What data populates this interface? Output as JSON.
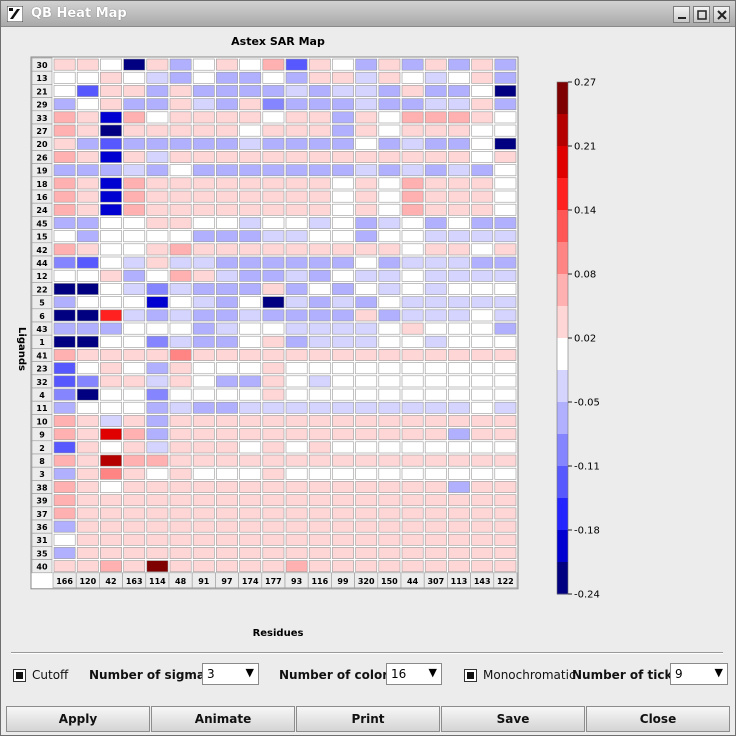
{
  "window": {
    "title": "QB Heat Map"
  },
  "chart_data": {
    "type": "heatmap",
    "title": "Astex SAR Map",
    "xlabel": "Residues",
    "ylabel": "Ligands",
    "columns": [
      "166",
      "120",
      "42",
      "163",
      "114",
      "48",
      "91",
      "97",
      "174",
      "177",
      "93",
      "116",
      "99",
      "320",
      "150",
      "44",
      "307",
      "113",
      "143",
      "122"
    ],
    "rows": [
      "30",
      "13",
      "21",
      "29",
      "33",
      "27",
      "20",
      "26",
      "19",
      "18",
      "16",
      "24",
      "45",
      "15",
      "42",
      "44",
      "12",
      "22",
      "5",
      "6",
      "43",
      "1",
      "41",
      "23",
      "32",
      "4",
      "11",
      "10",
      "9",
      "2",
      "8",
      "3",
      "38",
      "39",
      "37",
      "36",
      "31",
      "35",
      "40"
    ],
    "values": [
      [
        0.03,
        0.03,
        0,
        -0.21,
        0.02,
        -0.05,
        0,
        0.02,
        0,
        0.06,
        -0.14,
        0.03,
        0,
        -0.05,
        0.02,
        -0.05,
        0.02,
        -0.05,
        0.02,
        -0.05
      ],
      [
        0,
        0,
        0.02,
        0,
        -0.02,
        -0.05,
        0,
        -0.05,
        -0.05,
        0,
        -0.05,
        0.02,
        0.02,
        -0.02,
        0.02,
        0,
        -0.02,
        0,
        0.02,
        -0.08
      ],
      [
        0,
        -0.14,
        0.02,
        0.02,
        -0.05,
        0.04,
        -0.05,
        -0.05,
        -0.05,
        -0.05,
        -0.02,
        -0.05,
        -0.02,
        -0.02,
        -0.08,
        0.02,
        -0.05,
        -0.05,
        0,
        -0.21
      ],
      [
        -0.05,
        0,
        0.02,
        -0.05,
        -0.08,
        0.02,
        -0.02,
        -0.05,
        0.02,
        -0.11,
        -0.05,
        -0.05,
        -0.05,
        -0.02,
        -0.05,
        -0.05,
        -0.02,
        -0.02,
        0.02,
        -0.05
      ],
      [
        0.05,
        0.04,
        -0.18,
        0.05,
        0,
        0.04,
        0.03,
        0.04,
        0.03,
        0,
        0.04,
        0.02,
        -0.05,
        0.02,
        0,
        0.06,
        0.06,
        0.06,
        0.03,
        0
      ],
      [
        0.06,
        0.04,
        -0.21,
        0.04,
        0.02,
        0.02,
        0.02,
        0.02,
        0,
        0.02,
        0.02,
        0.02,
        -0.05,
        0.02,
        0,
        0.02,
        0.02,
        0.02,
        0,
        0
      ],
      [
        0.03,
        -0.05,
        -0.14,
        -0.05,
        -0.08,
        -0.05,
        -0.05,
        -0.05,
        -0.02,
        -0.08,
        -0.05,
        -0.05,
        -0.05,
        0,
        -0.05,
        -0.02,
        -0.05,
        -0.05,
        0,
        -0.21
      ],
      [
        0.06,
        0.04,
        -0.18,
        0.04,
        -0.02,
        0.04,
        0.03,
        0.03,
        0.02,
        0.03,
        0.03,
        0.02,
        0.02,
        0.02,
        0.02,
        0.04,
        0.04,
        0.04,
        0,
        0.02
      ],
      [
        -0.05,
        -0.05,
        -0.05,
        -0.02,
        -0.05,
        0,
        -0.05,
        -0.05,
        -0.05,
        -0.05,
        -0.05,
        -0.05,
        -0.05,
        -0.02,
        -0.08,
        -0.02,
        -0.05,
        -0.02,
        -0.05,
        0
      ],
      [
        0.06,
        0.04,
        -0.18,
        0.05,
        0.04,
        0.03,
        0.04,
        0.03,
        0.04,
        0.02,
        0.03,
        0.03,
        0,
        0.02,
        0,
        0.05,
        0.04,
        0.03,
        0.02,
        0
      ],
      [
        0.06,
        0.04,
        -0.18,
        0.05,
        0.04,
        0.03,
        0.04,
        0.03,
        0.04,
        0.02,
        0.03,
        0.03,
        0,
        0.02,
        0,
        0.05,
        0.04,
        0.03,
        0.02,
        0
      ],
      [
        0.06,
        0.04,
        -0.18,
        0.05,
        0.04,
        0.03,
        0.04,
        0.03,
        0.04,
        0.02,
        0.03,
        0.03,
        0,
        0.02,
        0,
        0.05,
        0.04,
        0.03,
        0.02,
        0
      ],
      [
        -0.08,
        -0.05,
        0,
        0,
        0.04,
        0.02,
        0,
        0,
        -0.02,
        0,
        0,
        -0.02,
        0,
        -0.05,
        -0.02,
        0,
        -0.05,
        0,
        -0.05,
        -0.05
      ],
      [
        0,
        -0.08,
        0,
        0,
        0,
        0,
        -0.05,
        -0.05,
        -0.05,
        -0.02,
        -0.02,
        0,
        0,
        -0.05,
        0,
        0,
        -0.02,
        -0.02,
        -0.02,
        -0.02
      ],
      [
        0.05,
        0.04,
        0,
        0,
        0.02,
        0.06,
        0.03,
        0.03,
        0.03,
        0.02,
        0.04,
        0.04,
        0.04,
        0.02,
        0.03,
        0,
        0.02,
        0.02,
        0,
        0.02
      ],
      [
        -0.11,
        -0.14,
        0,
        -0.02,
        0.03,
        -0.02,
        -0.02,
        -0.05,
        -0.05,
        -0.05,
        -0.05,
        -0.05,
        -0.05,
        0,
        -0.05,
        -0.02,
        -0.02,
        -0.02,
        -0.05,
        -0.08
      ],
      [
        0,
        0,
        0.02,
        -0.05,
        0,
        0.05,
        0.02,
        -0.02,
        -0.05,
        -0.08,
        -0.02,
        -0.05,
        0,
        -0.02,
        -0.02,
        0,
        -0.02,
        -0.02,
        -0.02,
        -0.02
      ],
      [
        -0.24,
        -0.24,
        0,
        -0.02,
        -0.11,
        -0.02,
        -0.08,
        -0.05,
        -0.05,
        0.02,
        -0.05,
        0,
        -0.08,
        0,
        -0.02,
        0,
        -0.02,
        0,
        0,
        0
      ],
      [
        -0.08,
        0,
        0,
        0,
        -0.18,
        0,
        -0.02,
        -0.08,
        0,
        -0.24,
        -0.02,
        -0.08,
        -0.02,
        -0.05,
        0,
        -0.02,
        -0.02,
        -0.02,
        -0.02,
        -0.02
      ],
      [
        -0.24,
        -0.21,
        0.15,
        -0.02,
        -0.05,
        -0.02,
        -0.08,
        -0.05,
        -0.02,
        -0.05,
        -0.08,
        -0.08,
        -0.08,
        0.03,
        -0.05,
        -0.02,
        -0.02,
        -0.02,
        0,
        -0.02
      ],
      [
        -0.05,
        -0.05,
        -0.05,
        0,
        0,
        0,
        -0.05,
        -0.02,
        0,
        0,
        -0.02,
        -0.02,
        -0.02,
        -0.02,
        0,
        0.02,
        0,
        0,
        0,
        -0.08
      ],
      [
        -0.24,
        -0.24,
        0,
        0,
        -0.11,
        -0.02,
        -0.05,
        -0.05,
        0,
        0.02,
        -0.05,
        -0.02,
        -0.02,
        -0.02,
        0,
        0,
        -0.02,
        0,
        0,
        0
      ],
      [
        0.06,
        0.03,
        0.03,
        0.03,
        0.03,
        0.08,
        0.03,
        0.03,
        0.02,
        0.03,
        0.03,
        0.02,
        0.02,
        0.02,
        0.04,
        0.02,
        0.02,
        0.02,
        0.02,
        0.02
      ],
      [
        -0.14,
        0,
        0.02,
        0,
        -0.05,
        0.02,
        0,
        0,
        0,
        0.02,
        0,
        0,
        0,
        0,
        0,
        0,
        0,
        0,
        0,
        0
      ],
      [
        -0.14,
        -0.11,
        0.02,
        0.02,
        -0.02,
        0.02,
        0,
        -0.05,
        -0.05,
        0.02,
        0,
        -0.02,
        0,
        0,
        0,
        0,
        0,
        0,
        0,
        0
      ],
      [
        -0.11,
        -0.24,
        0,
        0,
        -0.11,
        0,
        0,
        0,
        0,
        0.03,
        0,
        0,
        0,
        0,
        0,
        0,
        0,
        0,
        0,
        0
      ],
      [
        -0.05,
        0,
        0,
        0,
        -0.05,
        -0.02,
        -0.05,
        -0.05,
        -0.02,
        -0.02,
        -0.02,
        -0.02,
        -0.02,
        -0.02,
        -0.02,
        -0.02,
        -0.02,
        -0.02,
        0,
        -0.02
      ],
      [
        0.06,
        0.03,
        -0.02,
        0.03,
        -0.05,
        0.02,
        0.02,
        0.02,
        0.02,
        0.02,
        0.02,
        0.02,
        0.02,
        0.02,
        0.02,
        0.02,
        0.02,
        0.02,
        0.02,
        0.02
      ],
      [
        0.06,
        0.04,
        0.19,
        0.05,
        -0.05,
        0.02,
        0.02,
        0.02,
        0.02,
        0.02,
        0.02,
        0.02,
        0.02,
        0.02,
        0.02,
        0.02,
        0.02,
        -0.08,
        0.02,
        0.02
      ],
      [
        -0.14,
        0.03,
        0,
        0.03,
        -0.02,
        0.02,
        0.02,
        0.02,
        0,
        0.02,
        0,
        0.02,
        0,
        0,
        0,
        0,
        0,
        0,
        0,
        0
      ],
      [
        0.06,
        0.04,
        0.21,
        0.05,
        0.06,
        0.02,
        0.02,
        0.02,
        0.02,
        0.02,
        0.02,
        0.02,
        0.02,
        0.02,
        0.02,
        0.02,
        0.02,
        0.02,
        0.02,
        0.02
      ],
      [
        -0.08,
        0.03,
        0.08,
        0.03,
        0,
        0.02,
        0,
        0,
        0,
        0.02,
        0,
        0,
        0,
        0,
        0,
        0,
        0,
        0,
        0,
        0
      ],
      [
        0.06,
        0.02,
        0,
        0.03,
        0.02,
        0.02,
        0.02,
        0.02,
        0.02,
        0.02,
        0.02,
        0.02,
        0.02,
        0.02,
        0.03,
        0.02,
        0.02,
        -0.08,
        0.02,
        0.02
      ],
      [
        0.06,
        0.04,
        0.02,
        0.03,
        0.02,
        0.03,
        0.03,
        0.03,
        0.03,
        0.03,
        0.03,
        0.03,
        0.03,
        0.02,
        0.03,
        0.02,
        0.02,
        0.02,
        0.04,
        0.03
      ],
      [
        0.06,
        0.04,
        0.03,
        0.04,
        0.03,
        0.03,
        0.03,
        0.03,
        0.03,
        0.03,
        0.03,
        0.03,
        0.03,
        0.03,
        0.03,
        0.03,
        0.03,
        0.03,
        0.03,
        0.03
      ],
      [
        -0.05,
        0.03,
        0.03,
        0.03,
        0.02,
        0.02,
        0.02,
        0.02,
        0.02,
        0.02,
        0.02,
        0.02,
        0.02,
        0.02,
        0.02,
        0.02,
        0.02,
        0.02,
        0.02,
        0.02
      ],
      [
        0,
        0.03,
        0.03,
        0.03,
        0.02,
        0.02,
        0.02,
        0.02,
        0.02,
        0.02,
        0.02,
        0.02,
        0.02,
        0.02,
        0.02,
        0.02,
        0.02,
        0.02,
        0.02,
        0.02
      ],
      [
        -0.05,
        0.03,
        0.03,
        0.03,
        0.02,
        0.02,
        0.02,
        0.02,
        0.02,
        0.02,
        0.02,
        0.02,
        0.02,
        0.02,
        0.02,
        0.02,
        0.02,
        0.02,
        0.02,
        0.02
      ],
      [
        0.04,
        0.02,
        0.05,
        0.03,
        0.27,
        0.04,
        0.02,
        0.02,
        0.02,
        0.02,
        0.06,
        0.02,
        0.02,
        0.02,
        0.02,
        0.02,
        0.02,
        0.02,
        0.02,
        0.02
      ]
    ],
    "colorbar": {
      "min": -0.24,
      "max": 0.27,
      "tick_labels": [
        "0.27",
        "0.21",
        "0.14",
        "0.08",
        "0.02",
        "-0.05",
        "-0.11",
        "-0.18",
        "-0.24"
      ],
      "colors": [
        "#7f0000",
        "#b50000",
        "#e00000",
        "#ff2020",
        "#ff5656",
        "#ff8585",
        "#ffb0b0",
        "#ffd6d6",
        "#ffffff",
        "#d4d4ff",
        "#b0b0ff",
        "#8585ff",
        "#5858ff",
        "#2424ff",
        "#0000d0",
        "#000080"
      ]
    }
  },
  "controls": {
    "cutoff_label": "Cutoff",
    "sigmas_label": "Number of sigmas:",
    "sigmas_value": "3",
    "colors_label": "Number of colors:",
    "colors_value": "16",
    "mono_label": "Monochromatic",
    "ticks_label": "Number of ticks:",
    "ticks_value": "9"
  },
  "buttons": {
    "apply": "Apply",
    "animate": "Animate",
    "print": "Print",
    "save": "Save",
    "close": "Close"
  },
  "icons": {
    "app": "app-logo-icon",
    "min": "minimize-icon",
    "max": "maximize-icon",
    "close": "close-icon",
    "dropdown": "dropdown-arrow-icon"
  }
}
